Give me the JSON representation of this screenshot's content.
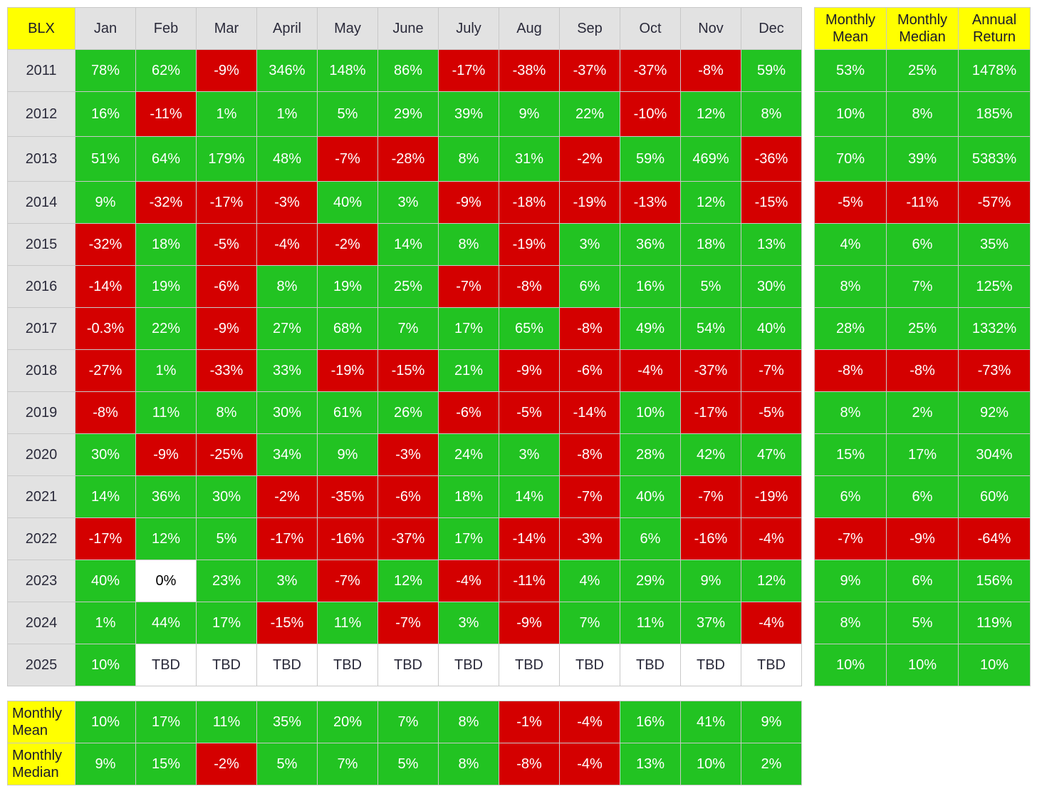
{
  "chart_data": {
    "type": "table",
    "corner_label": "BLX",
    "columns": [
      "Jan",
      "Feb",
      "Mar",
      "April",
      "May",
      "June",
      "July",
      "Aug",
      "Sep",
      "Oct",
      "Nov",
      "Dec"
    ],
    "stat_columns": [
      "Monthly Mean",
      "Monthly Median",
      "Annual Return"
    ],
    "rows": [
      {
        "year": "2011",
        "values": [
          "78%",
          "62%",
          "-9%",
          "346%",
          "148%",
          "86%",
          "-17%",
          "-38%",
          "-37%",
          "-37%",
          "-8%",
          "59%"
        ],
        "stats": [
          "53%",
          "25%",
          "1478%"
        ]
      },
      {
        "year": "2012",
        "values": [
          "16%",
          "-11%",
          "1%",
          "1%",
          "5%",
          "29%",
          "39%",
          "9%",
          "22%",
          "-10%",
          "12%",
          "8%"
        ],
        "stats": [
          "10%",
          "8%",
          "185%"
        ]
      },
      {
        "year": "2013",
        "values": [
          "51%",
          "64%",
          "179%",
          "48%",
          "-7%",
          "-28%",
          "8%",
          "31%",
          "-2%",
          "59%",
          "469%",
          "-36%"
        ],
        "stats": [
          "70%",
          "39%",
          "5383%"
        ]
      },
      {
        "year": "2014",
        "values": [
          "9%",
          "-32%",
          "-17%",
          "-3%",
          "40%",
          "3%",
          "-9%",
          "-18%",
          "-19%",
          "-13%",
          "12%",
          "-15%"
        ],
        "stats": [
          "-5%",
          "-11%",
          "-57%"
        ]
      },
      {
        "year": "2015",
        "values": [
          "-32%",
          "18%",
          "-5%",
          "-4%",
          "-2%",
          "14%",
          "8%",
          "-19%",
          "3%",
          "36%",
          "18%",
          "13%"
        ],
        "stats": [
          "4%",
          "6%",
          "35%"
        ]
      },
      {
        "year": "2016",
        "values": [
          "-14%",
          "19%",
          "-6%",
          "8%",
          "19%",
          "25%",
          "-7%",
          "-8%",
          "6%",
          "16%",
          "5%",
          "30%"
        ],
        "stats": [
          "8%",
          "7%",
          "125%"
        ]
      },
      {
        "year": "2017",
        "values": [
          "-0.3%",
          "22%",
          "-9%",
          "27%",
          "68%",
          "7%",
          "17%",
          "65%",
          "-8%",
          "49%",
          "54%",
          "40%"
        ],
        "stats": [
          "28%",
          "25%",
          "1332%"
        ]
      },
      {
        "year": "2018",
        "values": [
          "-27%",
          "1%",
          "-33%",
          "33%",
          "-19%",
          "-15%",
          "21%",
          "-9%",
          "-6%",
          "-4%",
          "-37%",
          "-7%"
        ],
        "stats": [
          "-8%",
          "-8%",
          "-73%"
        ]
      },
      {
        "year": "2019",
        "values": [
          "-8%",
          "11%",
          "8%",
          "30%",
          "61%",
          "26%",
          "-6%",
          "-5%",
          "-14%",
          "10%",
          "-17%",
          "-5%"
        ],
        "stats": [
          "8%",
          "2%",
          "92%"
        ]
      },
      {
        "year": "2020",
        "values": [
          "30%",
          "-9%",
          "-25%",
          "34%",
          "9%",
          "-3%",
          "24%",
          "3%",
          "-8%",
          "28%",
          "42%",
          "47%"
        ],
        "stats": [
          "15%",
          "17%",
          "304%"
        ]
      },
      {
        "year": "2021",
        "values": [
          "14%",
          "36%",
          "30%",
          "-2%",
          "-35%",
          "-6%",
          "18%",
          "14%",
          "-7%",
          "40%",
          "-7%",
          "-19%"
        ],
        "stats": [
          "6%",
          "6%",
          "60%"
        ]
      },
      {
        "year": "2022",
        "values": [
          "-17%",
          "12%",
          "5%",
          "-17%",
          "-16%",
          "-37%",
          "17%",
          "-14%",
          "-3%",
          "6%",
          "-16%",
          "-4%"
        ],
        "stats": [
          "-7%",
          "-9%",
          "-64%"
        ]
      },
      {
        "year": "2023",
        "values": [
          "40%",
          "0%",
          "23%",
          "3%",
          "-7%",
          "12%",
          "-4%",
          "-11%",
          "4%",
          "29%",
          "9%",
          "12%"
        ],
        "stats": [
          "9%",
          "6%",
          "156%"
        ]
      },
      {
        "year": "2024",
        "values": [
          "1%",
          "44%",
          "17%",
          "-15%",
          "11%",
          "-7%",
          "3%",
          "-9%",
          "7%",
          "11%",
          "37%",
          "-4%"
        ],
        "stats": [
          "8%",
          "5%",
          "119%"
        ]
      },
      {
        "year": "2025",
        "values": [
          "10%",
          "TBD",
          "TBD",
          "TBD",
          "TBD",
          "TBD",
          "TBD",
          "TBD",
          "TBD",
          "TBD",
          "TBD",
          "TBD"
        ],
        "stats": [
          "10%",
          "10%",
          "10%"
        ]
      }
    ],
    "summary_rows": [
      {
        "label": "Monthly Mean",
        "values": [
          "10%",
          "17%",
          "11%",
          "35%",
          "20%",
          "7%",
          "8%",
          "-1%",
          "-4%",
          "16%",
          "41%",
          "9%"
        ]
      },
      {
        "label": "Monthly Median",
        "values": [
          "9%",
          "15%",
          "-2%",
          "5%",
          "7%",
          "5%",
          "8%",
          "-8%",
          "-4%",
          "13%",
          "10%",
          "2%"
        ]
      }
    ],
    "colors": {
      "positive": "#22c322",
      "negative": "#d40000",
      "neutral": "#ffffff",
      "header_highlight": "#ffff00",
      "header": "#e2e2e2"
    },
    "grid": true
  }
}
